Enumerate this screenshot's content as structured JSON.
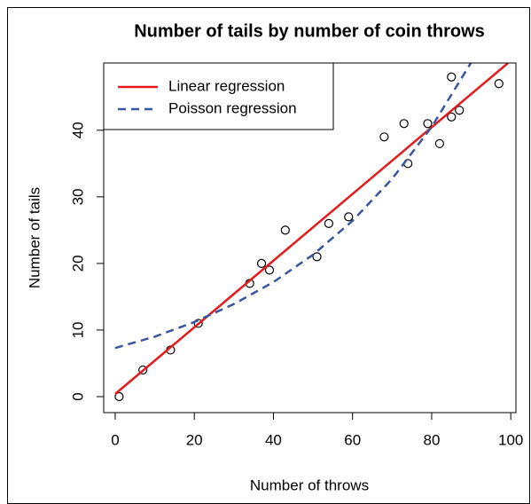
{
  "chart_data": {
    "type": "scatter",
    "title": "Number of tails by number of coin throws",
    "x_label": "Number of throws",
    "y_label": "Number of tails",
    "xlim": [
      -2.9,
      101.3
    ],
    "ylim": [
      -2.4,
      50.1
    ],
    "xticks": [
      0,
      20,
      40,
      60,
      80,
      100
    ],
    "yticks": [
      0,
      10,
      20,
      30,
      40
    ],
    "points": {
      "x": [
        1,
        7,
        14,
        21,
        34,
        37,
        39,
        43,
        51,
        54,
        59,
        68,
        73,
        74,
        79,
        82,
        85,
        85,
        87,
        97
      ],
      "values": [
        0,
        4,
        7,
        11,
        17,
        20,
        19,
        25,
        21,
        26,
        27,
        39,
        41,
        35,
        41,
        38,
        42,
        48,
        43,
        47
      ]
    },
    "legend": "top-left",
    "series": [
      {
        "name": "Linear regression",
        "color": "#e41a1c",
        "dash": false,
        "x": [
          0,
          99.3
        ],
        "values": [
          0.4,
          50.1
        ]
      },
      {
        "name": "Poisson regression",
        "color": "#3a56a0",
        "dash": true,
        "x": [
          0,
          10,
          20,
          30,
          40,
          50,
          60,
          70,
          80,
          90
        ],
        "values": [
          7.3,
          9.0,
          11.2,
          13.9,
          17.2,
          21.3,
          26.4,
          32.7,
          40.5,
          50.2
        ]
      }
    ]
  }
}
